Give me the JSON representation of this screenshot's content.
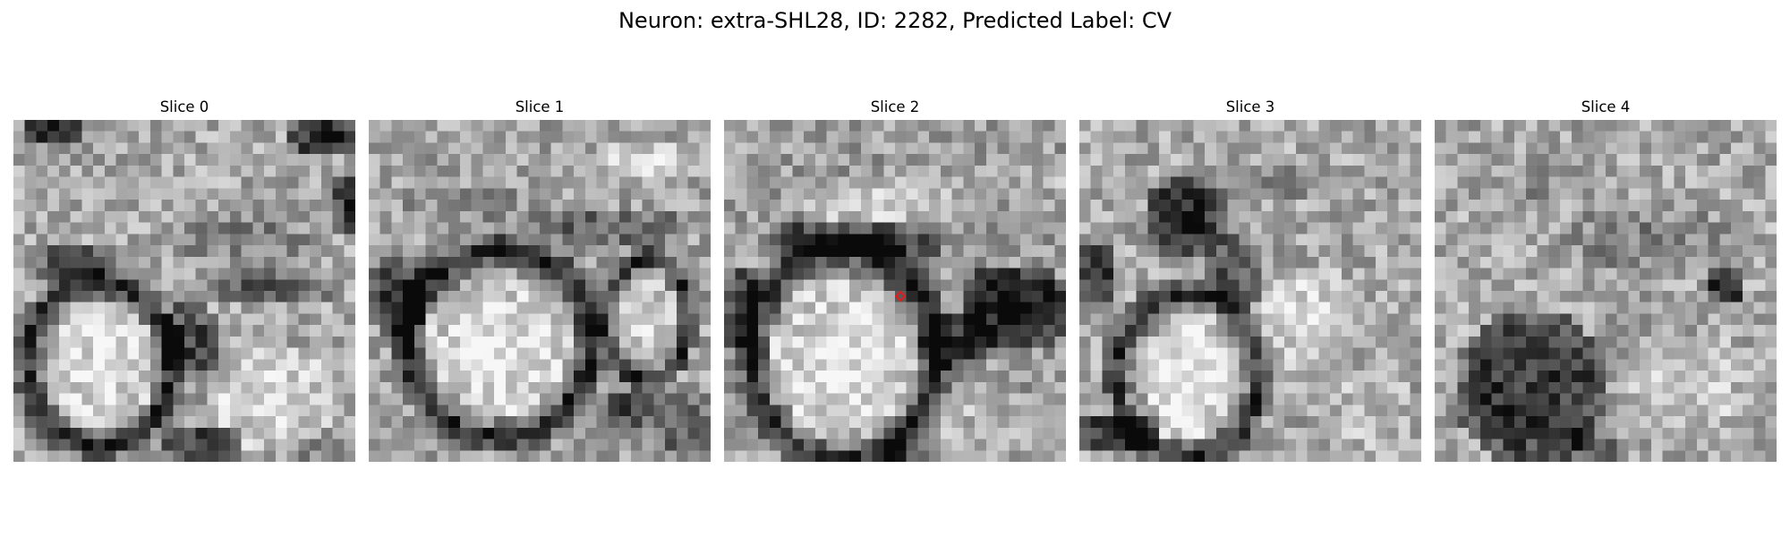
{
  "figure": {
    "title": "Neuron: extra-SHL28, ID: 2282, Predicted Label: CV",
    "marker_color": "#e41a1c",
    "colormap": "grayscale",
    "grid_size": 30,
    "marker": {
      "slice": 2,
      "col": 15,
      "row": 15
    }
  },
  "slices": [
    {
      "label": "Slice 0"
    },
    {
      "label": "Slice 1"
    },
    {
      "label": "Slice 2"
    },
    {
      "label": "Slice 3"
    },
    {
      "label": "Slice 4"
    }
  ]
}
